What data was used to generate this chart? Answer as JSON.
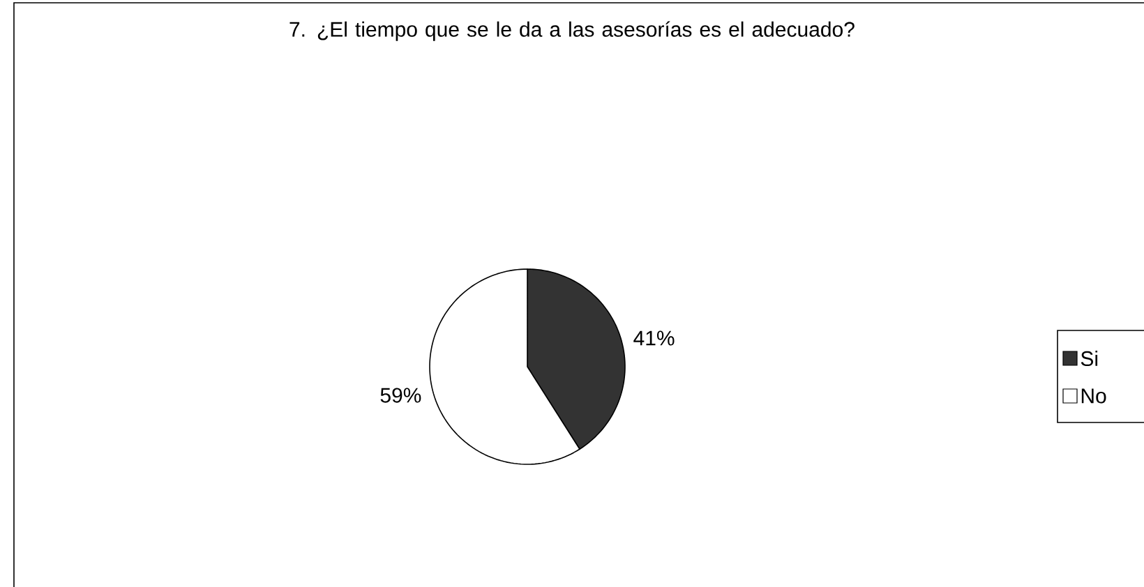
{
  "chart_data": {
    "type": "pie",
    "title": "7. ¿El tiempo que se le da a las asesorías es el adecuado?",
    "categories": [
      "Si",
      "No"
    ],
    "values": [
      41,
      59
    ],
    "colors": [
      "#333333",
      "#ffffff"
    ],
    "value_labels": [
      "41%",
      "59%"
    ],
    "legend": "right"
  }
}
